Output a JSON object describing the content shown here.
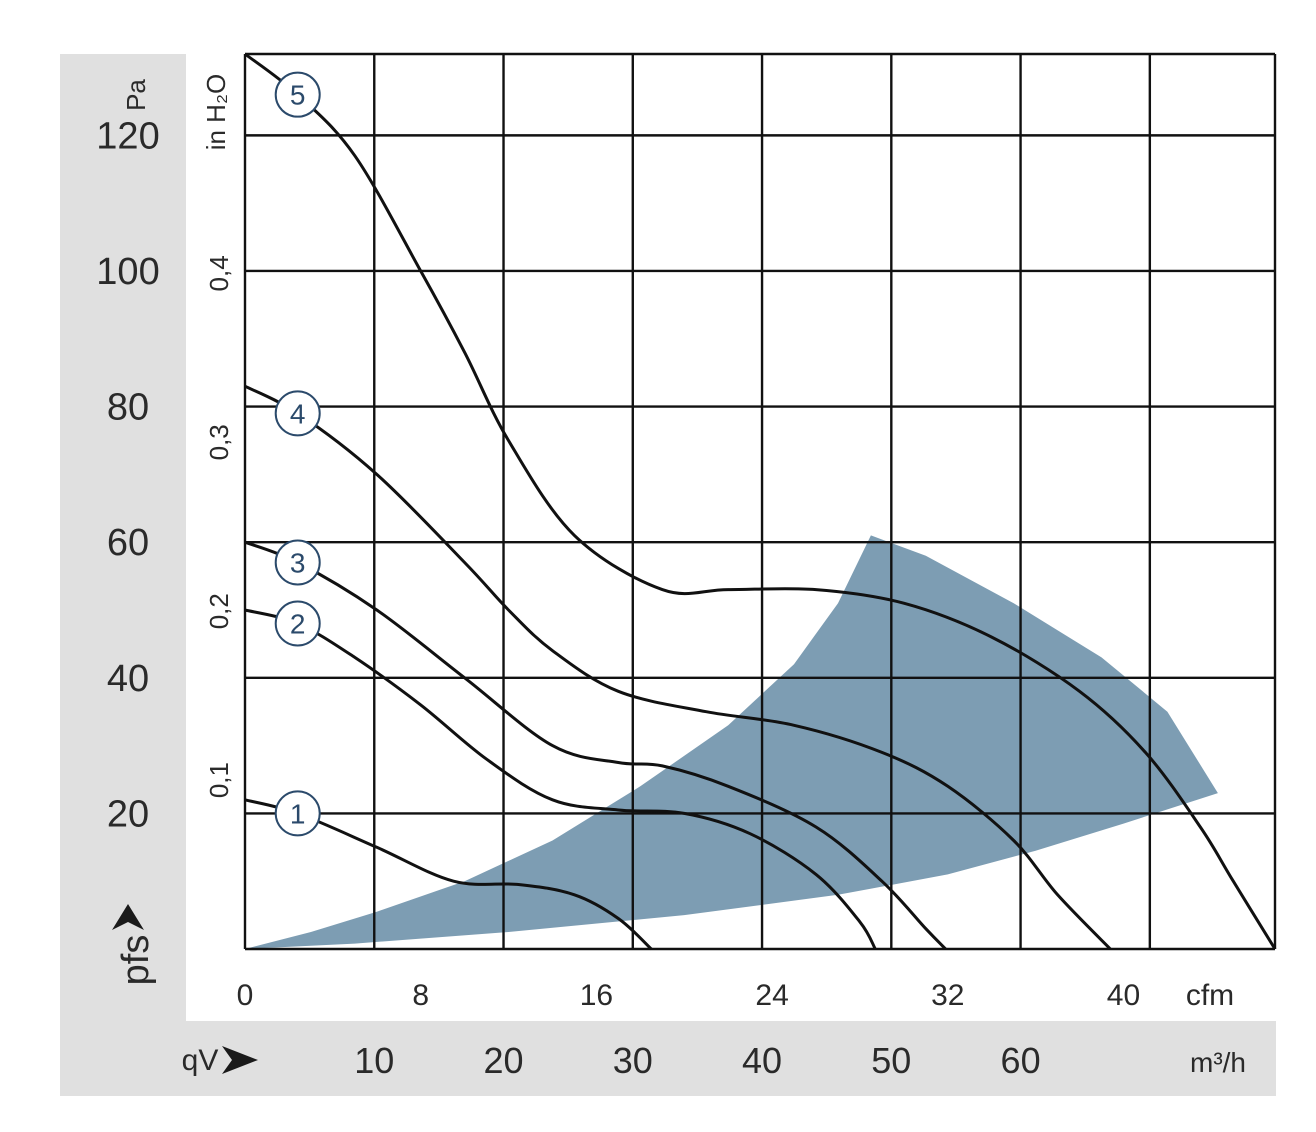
{
  "chart_data": {
    "type": "line",
    "title": "",
    "xlabel": "qV",
    "x_unit_top": "cfm",
    "x_unit_bottom": "m³/h",
    "xlim": [
      0,
      46.9
    ],
    "x_ticks_cfm": [
      0,
      8,
      16,
      24,
      32,
      40
    ],
    "x_ticks_m3h": [
      10,
      20,
      30,
      40,
      50,
      60
    ],
    "ylabel_left": "pfs",
    "y_unit_left": "Pa",
    "y_unit_right": "in H₂O",
    "ylim": [
      0,
      132
    ],
    "y_ticks_pa": [
      20,
      40,
      60,
      80,
      100,
      120
    ],
    "y_ticks_inh2o": [
      "0,1",
      "0,2",
      "0,3",
      "0,4"
    ],
    "y_ticks_inh2o_values": [
      0.1,
      0.2,
      0.3,
      0.4
    ],
    "grid": true,
    "series": [
      {
        "name": "1",
        "points": [
          [
            0,
            22
          ],
          [
            2.4,
            20
          ],
          [
            6,
            15
          ],
          [
            9.5,
            10
          ],
          [
            12.5,
            9.5
          ],
          [
            15,
            8
          ],
          [
            17,
            4.5
          ],
          [
            18.5,
            0
          ]
        ]
      },
      {
        "name": "2",
        "points": [
          [
            0,
            50
          ],
          [
            2.4,
            48
          ],
          [
            5,
            43
          ],
          [
            8,
            36
          ],
          [
            11,
            28
          ],
          [
            14,
            22
          ],
          [
            17,
            20.5
          ],
          [
            20,
            20
          ],
          [
            23,
            17
          ],
          [
            26,
            11
          ],
          [
            28,
            4
          ],
          [
            28.7,
            0
          ]
        ]
      },
      {
        "name": "3",
        "points": [
          [
            0,
            60
          ],
          [
            2.4,
            57
          ],
          [
            6,
            50
          ],
          [
            10,
            40
          ],
          [
            14,
            30
          ],
          [
            17,
            27.5
          ],
          [
            19,
            27
          ],
          [
            22,
            24
          ],
          [
            26,
            18
          ],
          [
            29,
            10
          ],
          [
            31,
            3
          ],
          [
            31.9,
            0
          ]
        ]
      },
      {
        "name": "4",
        "points": [
          [
            0,
            83
          ],
          [
            2.4,
            79
          ],
          [
            6,
            70
          ],
          [
            10,
            57
          ],
          [
            12,
            50
          ],
          [
            14,
            44
          ],
          [
            17,
            38
          ],
          [
            21,
            35
          ],
          [
            25,
            33
          ],
          [
            29,
            29
          ],
          [
            32,
            24
          ],
          [
            35,
            16
          ],
          [
            37,
            8
          ],
          [
            39.4,
            0
          ]
        ]
      },
      {
        "name": "5",
        "points": [
          [
            0,
            132
          ],
          [
            2.4,
            126
          ],
          [
            5,
            117
          ],
          [
            8,
            100
          ],
          [
            10,
            88
          ],
          [
            12,
            75
          ],
          [
            15,
            61
          ],
          [
            19,
            53
          ],
          [
            22,
            53
          ],
          [
            26,
            53
          ],
          [
            30,
            51
          ],
          [
            34,
            46
          ],
          [
            38,
            38
          ],
          [
            41,
            29
          ],
          [
            43.5,
            18
          ],
          [
            45,
            10
          ],
          [
            46.9,
            0
          ]
        ]
      }
    ],
    "curve_badges": [
      "1",
      "2",
      "3",
      "4",
      "5"
    ],
    "operating_region": {
      "color": "#7d9db3",
      "outline": [
        [
          0,
          0
        ],
        [
          3,
          2.5
        ],
        [
          6,
          5.5
        ],
        [
          10,
          10
        ],
        [
          14,
          16
        ],
        [
          18,
          24
        ],
        [
          22,
          33
        ],
        [
          25,
          42
        ],
        [
          27,
          51
        ],
        [
          28.5,
          61
        ],
        [
          31,
          58
        ],
        [
          35,
          51
        ],
        [
          39,
          43
        ],
        [
          42,
          35
        ],
        [
          44.3,
          23
        ],
        [
          40,
          18.5
        ],
        [
          36,
          14.5
        ],
        [
          32,
          11
        ],
        [
          27,
          8
        ],
        [
          20,
          5
        ],
        [
          12,
          2.5
        ],
        [
          5,
          0.8
        ],
        [
          0,
          0
        ]
      ]
    },
    "colors": {
      "curve": "#111111",
      "grid": "#111111",
      "axis_panel": "#e0e0e0",
      "badge_stroke": "#2b4a6b"
    }
  }
}
